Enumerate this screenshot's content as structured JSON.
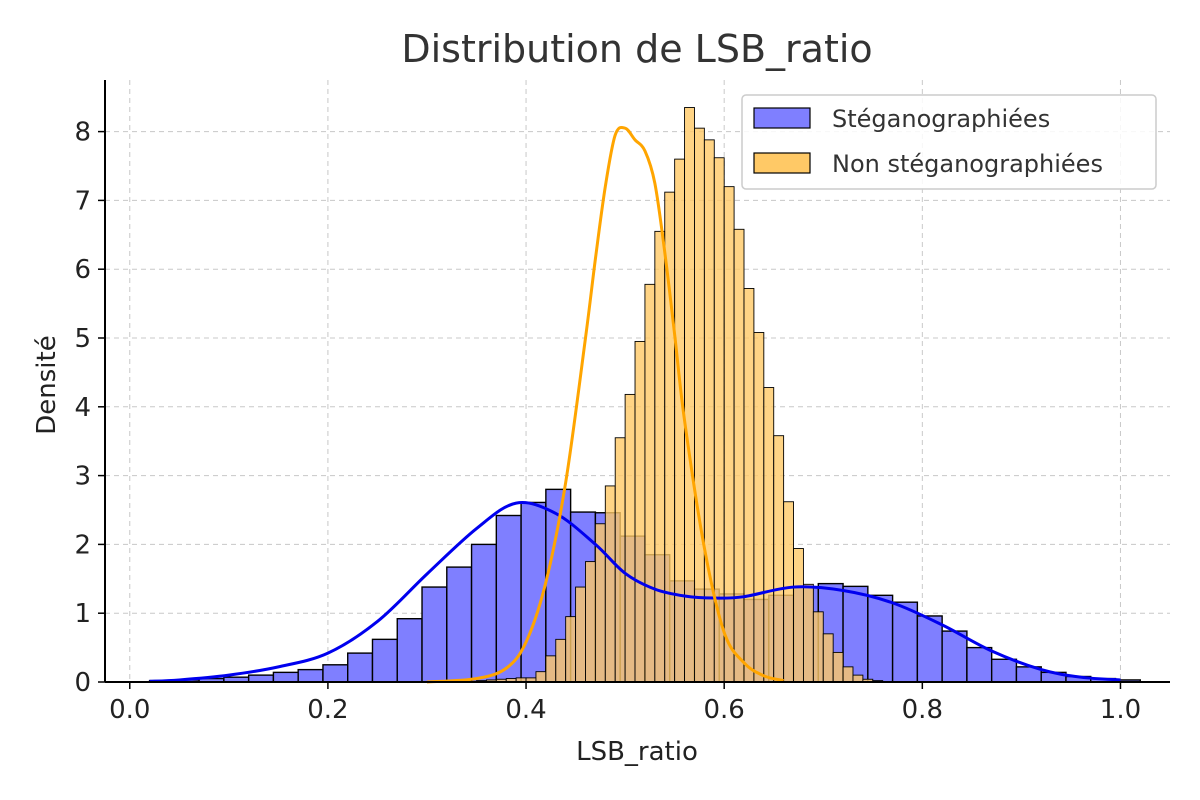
{
  "chart_data": {
    "type": "bar",
    "title": "Distribution de LSB_ratio",
    "xlabel": "LSB_ratio",
    "ylabel": "Densité",
    "xlim": [
      -0.025,
      1.05
    ],
    "ylim": [
      0,
      8.75
    ],
    "x_ticks": [
      0.0,
      0.2,
      0.4,
      0.6,
      0.8,
      1.0
    ],
    "x_tick_labels": [
      "0.0",
      "0.2",
      "0.4",
      "0.6",
      "0.8",
      "1.0"
    ],
    "y_ticks": [
      0,
      1,
      2,
      3,
      4,
      5,
      6,
      7,
      8
    ],
    "y_tick_labels": [
      "0",
      "1",
      "2",
      "3",
      "4",
      "5",
      "6",
      "7",
      "8"
    ],
    "grid": true,
    "legend_position": "top-right",
    "series": [
      {
        "name": "Stéganographiées",
        "bar_color": "#7f7fff",
        "kde_color": "#0000ee",
        "bin_start": 0.02,
        "bin_width": 0.025,
        "values": [
          0.02,
          0.03,
          0.05,
          0.07,
          0.1,
          0.14,
          0.18,
          0.25,
          0.42,
          0.62,
          0.92,
          1.38,
          1.67,
          2.0,
          2.42,
          2.61,
          2.8,
          2.47,
          2.46,
          2.12,
          1.85,
          1.47,
          1.35,
          1.28,
          1.2,
          1.26,
          1.38,
          1.43,
          1.39,
          1.26,
          1.16,
          0.96,
          0.74,
          0.5,
          0.33,
          0.22,
          0.14,
          0.08,
          0.05,
          0.03
        ],
        "kde": {
          "x": [
            0.02,
            0.05,
            0.1,
            0.15,
            0.2,
            0.25,
            0.3,
            0.35,
            0.39,
            0.43,
            0.47,
            0.5,
            0.53,
            0.56,
            0.59,
            0.62,
            0.67,
            0.72,
            0.77,
            0.82,
            0.87,
            0.92,
            0.96,
            1.0
          ],
          "y": [
            0.01,
            0.03,
            0.1,
            0.22,
            0.42,
            0.88,
            1.57,
            2.23,
            2.6,
            2.45,
            2.0,
            1.58,
            1.35,
            1.25,
            1.22,
            1.24,
            1.38,
            1.33,
            1.15,
            0.83,
            0.45,
            0.18,
            0.07,
            0.03
          ]
        }
      },
      {
        "name": "Non stéganographiées",
        "bar_color": "#ffc966",
        "kde_color": "#ffa500",
        "bin_start": 0.3,
        "bin_width": 0.01,
        "values": [
          0.0,
          0.0,
          0.0,
          0.0,
          0.01,
          0.02,
          0.03,
          0.04,
          0.05,
          0.06,
          0.06,
          0.15,
          0.38,
          0.62,
          0.95,
          1.38,
          1.75,
          2.3,
          2.85,
          3.55,
          4.18,
          4.95,
          5.78,
          6.55,
          7.12,
          7.6,
          8.35,
          8.05,
          7.88,
          7.62,
          7.2,
          6.58,
          5.72,
          5.08,
          4.28,
          3.58,
          2.62,
          1.94,
          1.42,
          1.02,
          0.7,
          0.43,
          0.22,
          0.1,
          0.04,
          0.02
        ],
        "kde": {
          "x": [
            0.3,
            0.35,
            0.38,
            0.4,
            0.42,
            0.44,
            0.46,
            0.47,
            0.48,
            0.49,
            0.5,
            0.51,
            0.52,
            0.53,
            0.54,
            0.55,
            0.56,
            0.58,
            0.6,
            0.62,
            0.64,
            0.66
          ],
          "y": [
            0.0,
            0.05,
            0.2,
            0.58,
            1.45,
            2.9,
            5.0,
            6.15,
            7.2,
            7.95,
            8.05,
            7.88,
            7.72,
            7.25,
            6.25,
            5.05,
            3.8,
            1.95,
            0.72,
            0.28,
            0.09,
            0.02
          ]
        }
      }
    ]
  }
}
